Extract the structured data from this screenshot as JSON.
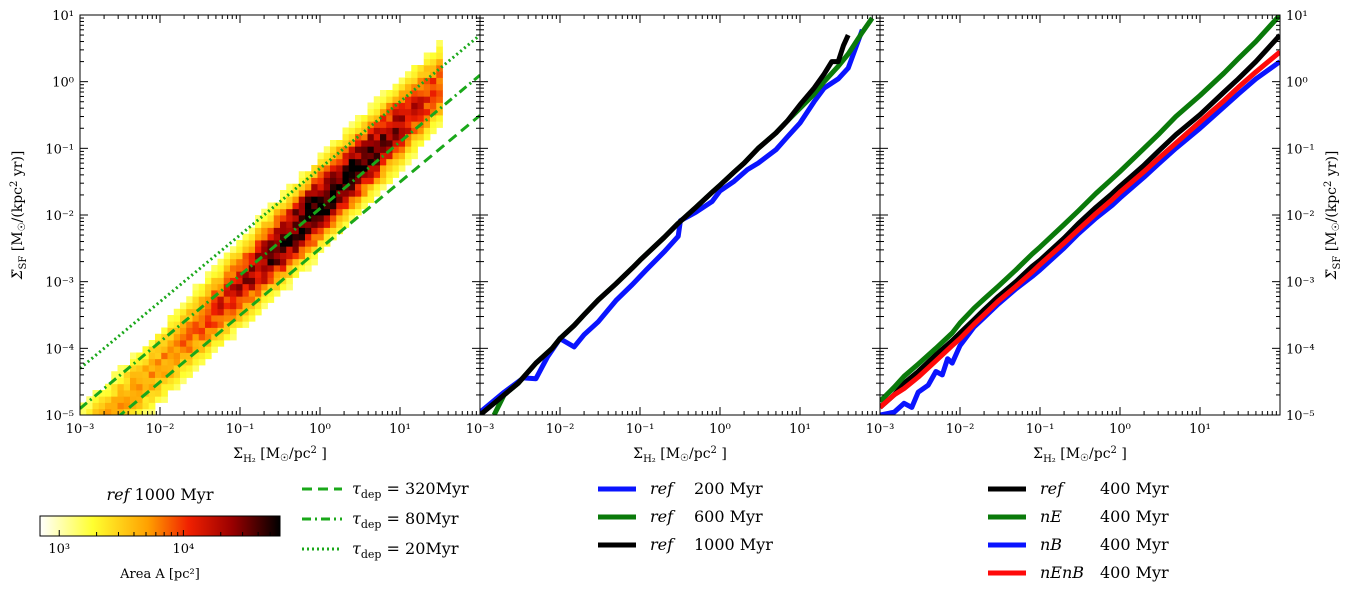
{
  "chart_data": [
    {
      "type": "heatmap",
      "panel": "left",
      "xlabel": "Σ_H₂ [M☉/pc² ]",
      "ylabel": "Σ̇_SF [M☉/(kpc² yr)]",
      "xscale": "log",
      "yscale": "log",
      "xlim": [
        0.001,
        100
      ],
      "ylim": [
        1e-05,
        10
      ],
      "x_tick_labels": [
        "10⁻³",
        "10⁻²",
        "10⁻¹",
        "10⁰",
        "10¹"
      ],
      "y_tick_labels": [
        "10⁻⁵",
        "10⁻⁴",
        "10⁻³",
        "10⁻²",
        "10⁻¹",
        "10⁰",
        "10¹"
      ],
      "title": "ref 1000 Myr",
      "colorbar": {
        "label": "Area A [pc²]",
        "tick_labels": [
          "10³",
          "10⁴"
        ],
        "range": [
          700,
          60000
        ],
        "colormap": "hot_r"
      },
      "heatmap_model": {
        "relation": "log10(SFR) = 1.2*log10(Σ) - 1.85",
        "scatter_dex": 0.25
      },
      "reference_lines": [
        {
          "name": "τ_dep = 320Myr",
          "tau_myr": 320,
          "style": "dashed"
        },
        {
          "name": "τ_dep = 80Myr",
          "tau_myr": 80,
          "style": "dashdot"
        },
        {
          "name": "τ_dep = 20Myr",
          "tau_myr": 20,
          "style": "dotted"
        }
      ]
    },
    {
      "type": "line",
      "panel": "middle",
      "xlabel": "Σ_H₂ [M☉/pc² ]",
      "xscale": "log",
      "yscale": "log",
      "xlim": [
        0.001,
        100
      ],
      "ylim": [
        1e-05,
        10
      ],
      "x_tick_labels": [
        "10⁻³",
        "10⁻²",
        "10⁻¹",
        "10⁰",
        "10¹"
      ],
      "series": [
        {
          "name": "ref",
          "time": "200 Myr",
          "color": "#0a14ff",
          "x": [
            0.001,
            0.002,
            0.0035,
            0.005,
            0.007,
            0.01,
            0.015,
            0.02,
            0.03,
            0.05,
            0.08,
            0.12,
            0.2,
            0.3,
            0.32,
            0.5,
            0.8,
            1.0,
            1.5,
            2.2,
            3.0,
            5.0,
            7.0,
            10.0,
            15.0,
            20.0,
            30.0,
            40.0,
            60.0
          ],
          "y": [
            1.1e-05,
            2.2e-05,
            3.6e-05,
            3.5e-05,
            7.5e-05,
            0.00014,
            0.000105,
            0.00016,
            0.00025,
            0.00052,
            0.0009,
            0.0015,
            0.0028,
            0.0048,
            0.0082,
            0.011,
            0.016,
            0.023,
            0.032,
            0.048,
            0.06,
            0.095,
            0.15,
            0.24,
            0.5,
            0.8,
            1.1,
            1.6,
            6.0
          ]
        },
        {
          "name": "ref",
          "time": "600 Myr",
          "color": "#0a7a0a",
          "x": [
            0.0015,
            0.002,
            0.003,
            0.005,
            0.008,
            0.01,
            0.015,
            0.02,
            0.03,
            0.05,
            0.08,
            0.1,
            0.2,
            0.3,
            0.5,
            0.8,
            1.0,
            1.5,
            2.0,
            3.0,
            5.0,
            7.0,
            10.0,
            15.0,
            20.0,
            30.0,
            40.0,
            60.0,
            80.0
          ],
          "y": [
            1e-05,
            2e-05,
            3e-05,
            6e-05,
            0.0001,
            0.00014,
            0.00022,
            0.00032,
            0.00053,
            0.00093,
            0.0016,
            0.0021,
            0.0046,
            0.0075,
            0.013,
            0.022,
            0.028,
            0.044,
            0.06,
            0.1,
            0.17,
            0.26,
            0.4,
            0.65,
            1.0,
            1.7,
            2.6,
            5.5,
            9.0
          ]
        },
        {
          "name": "ref",
          "time": "1000 Myr",
          "color": "#000000",
          "x": [
            0.001,
            0.002,
            0.003,
            0.005,
            0.008,
            0.01,
            0.015,
            0.02,
            0.03,
            0.05,
            0.08,
            0.1,
            0.2,
            0.3,
            0.5,
            0.8,
            1.0,
            1.5,
            2.0,
            3.0,
            5.0,
            7.0,
            10.0,
            15.0,
            20.0,
            25.0,
            30.0,
            35.0,
            40.0
          ],
          "y": [
            1e-05,
            2e-05,
            3e-05,
            6e-05,
            0.0001,
            0.00014,
            0.00022,
            0.00032,
            0.00053,
            0.00093,
            0.0016,
            0.0021,
            0.0046,
            0.0075,
            0.013,
            0.022,
            0.028,
            0.044,
            0.06,
            0.1,
            0.17,
            0.26,
            0.45,
            0.8,
            1.3,
            2.0,
            2.0,
            3.5,
            5.0
          ]
        }
      ]
    },
    {
      "type": "line",
      "panel": "right",
      "xlabel": "Σ_H₂ [M☉/pc² ]",
      "ylabel": "Σ̇_SF [M☉/(kpc² yr)]",
      "xscale": "log",
      "yscale": "log",
      "xlim": [
        0.001,
        100
      ],
      "ylim": [
        1e-05,
        10
      ],
      "x_tick_labels": [
        "10⁻³",
        "10⁻²",
        "10⁻¹",
        "10⁰",
        "10¹"
      ],
      "y_tick_labels": [
        "10⁻⁵",
        "10⁻⁴",
        "10⁻³",
        "10⁻²",
        "10⁻¹",
        "10⁰",
        "10¹"
      ],
      "series": [
        {
          "name": "ref",
          "time": "400 Myr",
          "color": "#000000",
          "x": [
            0.001,
            0.0015,
            0.002,
            0.003,
            0.005,
            0.008,
            0.01,
            0.015,
            0.02,
            0.03,
            0.05,
            0.08,
            0.1,
            0.2,
            0.3,
            0.5,
            0.8,
            1.0,
            2.0,
            3.0,
            5.0,
            10.0,
            20.0,
            30.0,
            50.0,
            100.0
          ],
          "y": [
            1.3e-05,
            2e-05,
            3e-05,
            4.5e-05,
            8e-05,
            0.00013,
            0.00017,
            0.00027,
            0.00038,
            0.0006,
            0.001,
            0.0017,
            0.0021,
            0.0045,
            0.0074,
            0.013,
            0.021,
            0.027,
            0.056,
            0.09,
            0.16,
            0.32,
            0.7,
            1.1,
            2.0,
            5.0
          ]
        },
        {
          "name": "nE",
          "time": "400 Myr",
          "color": "#0a7a0a",
          "x": [
            0.001,
            0.0015,
            0.002,
            0.003,
            0.005,
            0.008,
            0.01,
            0.015,
            0.02,
            0.03,
            0.05,
            0.08,
            0.1,
            0.2,
            0.3,
            0.5,
            0.8,
            1.0,
            2.0,
            3.0,
            5.0,
            10.0,
            20.0,
            30.0,
            50.0,
            100.0
          ],
          "y": [
            1.6e-05,
            2.6e-05,
            3.8e-05,
            5.8e-05,
            0.0001,
            0.00017,
            0.00024,
            0.0004,
            0.00055,
            0.00085,
            0.0015,
            0.0026,
            0.0033,
            0.0072,
            0.0115,
            0.021,
            0.035,
            0.045,
            0.1,
            0.16,
            0.3,
            0.62,
            1.35,
            2.2,
            4.0,
            10.0
          ]
        },
        {
          "name": "nB",
          "time": "400 Myr",
          "color": "#0a14ff",
          "x": [
            0.001,
            0.0015,
            0.002,
            0.0025,
            0.003,
            0.004,
            0.005,
            0.006,
            0.007,
            0.008,
            0.01,
            0.015,
            0.02,
            0.03,
            0.05,
            0.08,
            0.1,
            0.2,
            0.3,
            0.5,
            0.8,
            1.0,
            2.0,
            3.0,
            5.0,
            10.0,
            20.0,
            30.0,
            50.0,
            100.0
          ],
          "y": [
            1e-05,
            1.1e-05,
            1.5e-05,
            1.3e-05,
            2.2e-05,
            2.8e-05,
            4.5e-05,
            4e-05,
            7e-05,
            6e-05,
            0.00011,
            0.00021,
            0.00029,
            0.00046,
            0.00078,
            0.0012,
            0.0015,
            0.0032,
            0.0052,
            0.009,
            0.014,
            0.018,
            0.037,
            0.058,
            0.1,
            0.2,
            0.42,
            0.65,
            1.1,
            2.0
          ]
        },
        {
          "name": "nEnB",
          "time": "400 Myr",
          "color": "#ff0a0a",
          "x": [
            0.001,
            0.0015,
            0.002,
            0.003,
            0.005,
            0.008,
            0.01,
            0.015,
            0.02,
            0.03,
            0.05,
            0.08,
            0.1,
            0.2,
            0.3,
            0.5,
            0.8,
            1.0,
            2.0,
            3.0,
            5.0,
            10.0,
            20.0,
            30.0,
            50.0,
            100.0
          ],
          "y": [
            1.3e-05,
            2e-05,
            2.5e-05,
            3.7e-05,
            6.5e-05,
            0.00011,
            0.00014,
            0.00023,
            0.00032,
            0.00051,
            0.00085,
            0.0014,
            0.0018,
            0.0038,
            0.006,
            0.0105,
            0.017,
            0.022,
            0.045,
            0.07,
            0.12,
            0.25,
            0.52,
            0.82,
            1.4,
            2.8
          ]
        }
      ]
    }
  ],
  "legends": {
    "tau": [
      {
        "label": "τ_dep = 320Myr",
        "math": "τ",
        "sub": "dep",
        "value": "320Myr",
        "style": "dashed",
        "color": "#1aa81a"
      },
      {
        "label": "τ_dep = 80Myr",
        "math": "τ",
        "sub": "dep",
        "value": "80Myr",
        "style": "dashdot",
        "color": "#1aa81a"
      },
      {
        "label": "τ_dep = 20Myr",
        "math": "τ",
        "sub": "dep",
        "value": "20Myr",
        "style": "dotted",
        "color": "#1aa81a"
      }
    ],
    "middle": [
      {
        "name": "ref",
        "time": "200 Myr",
        "color": "#0a14ff"
      },
      {
        "name": "ref",
        "time": "600 Myr",
        "color": "#0a7a0a"
      },
      {
        "name": "ref",
        "time": "1000 Myr",
        "color": "#000000"
      }
    ],
    "right": [
      {
        "name": "ref",
        "time": "400 Myr",
        "color": "#000000"
      },
      {
        "name": "nE",
        "time": "400 Myr",
        "color": "#0a7a0a"
      },
      {
        "name": "nB",
        "time": "400 Myr",
        "color": "#0a14ff"
      },
      {
        "name": "nEnB",
        "time": "400 Myr",
        "color": "#ff0a0a"
      }
    ]
  },
  "colorbar_title": {
    "italic": "ref",
    "rest": " 1000 Myr"
  },
  "colorbar_label": "Area A [pc²]"
}
